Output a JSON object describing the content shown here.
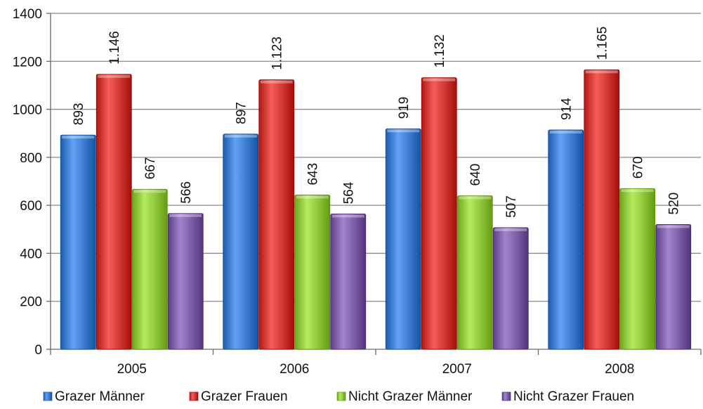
{
  "chart_data": {
    "type": "bar",
    "categories": [
      "2005",
      "2006",
      "2007",
      "2008"
    ],
    "series": [
      {
        "name": "Grazer Männer",
        "values": [
          893,
          897,
          919,
          914
        ],
        "labels": [
          "893",
          "897",
          "919",
          "914"
        ],
        "color": "#3f7fd1"
      },
      {
        "name": "Grazer Frauen",
        "values": [
          1146,
          1123,
          1132,
          1165
        ],
        "labels": [
          "1.146",
          "1.123",
          "1.132",
          "1.165"
        ],
        "color": "#d23a35"
      },
      {
        "name": "Nicht Grazer Männer",
        "values": [
          667,
          643,
          640,
          670
        ],
        "labels": [
          "667",
          "643",
          "640",
          "670"
        ],
        "color": "#92c83e"
      },
      {
        "name": "Nicht Grazer Frauen",
        "values": [
          566,
          564,
          507,
          520
        ],
        "labels": [
          "566",
          "564",
          "507",
          "520"
        ],
        "color": "#8060a8"
      }
    ],
    "ylim": [
      0,
      1400
    ],
    "yticks": [
      "0",
      "200",
      "400",
      "600",
      "800",
      "1000",
      "1200",
      "1400"
    ],
    "grid": true,
    "legend_position": "bottom",
    "title": "",
    "xlabel": "",
    "ylabel": ""
  }
}
